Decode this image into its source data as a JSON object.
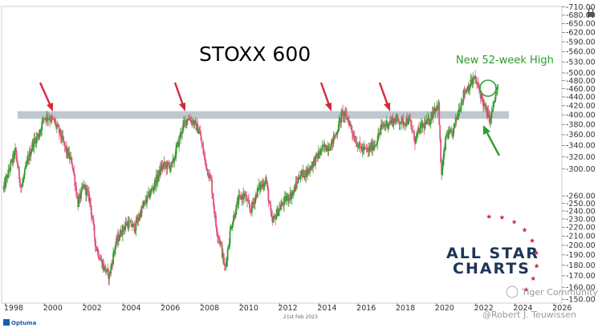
{
  "chart_data": {
    "type": "candlestick",
    "title": "STOXX 600",
    "x_ticks": [
      "1998",
      "2000",
      "2002",
      "2004",
      "2006",
      "2008",
      "2010",
      "2012",
      "2014",
      "2016",
      "2018",
      "2020",
      "2022",
      "2024",
      "2026"
    ],
    "y_ticks": [
      150,
      160,
      170,
      180,
      190,
      200,
      210,
      220,
      230,
      240,
      250,
      260,
      300,
      320,
      340,
      360,
      380,
      400,
      420,
      440,
      460,
      480,
      500,
      530,
      560,
      590,
      620,
      650,
      680,
      710
    ],
    "y_scale": "log",
    "ylim": [
      147,
      712
    ],
    "xlim": [
      1997.8,
      2026.4
    ],
    "resistance_band": [
      392,
      408
    ],
    "annotation": "New 52-week High",
    "date_stamp": "21st Feb 2023",
    "series": [
      {
        "values": [
          [
            1997.9,
            270
          ],
          [
            1998.2,
            300
          ],
          [
            1998.5,
            330
          ],
          [
            1998.8,
            270
          ],
          [
            1999.1,
            310
          ],
          [
            1999.4,
            345
          ],
          [
            1999.7,
            360
          ],
          [
            1999.95,
            395
          ],
          [
            2000.2,
            395
          ],
          [
            2000.5,
            385
          ],
          [
            2000.8,
            360
          ],
          [
            2001.1,
            330
          ],
          [
            2001.4,
            310
          ],
          [
            2001.7,
            250
          ],
          [
            2002.0,
            275
          ],
          [
            2002.3,
            255
          ],
          [
            2002.6,
            200
          ],
          [
            2002.85,
            185
          ],
          [
            2003.1,
            175
          ],
          [
            2003.3,
            170
          ],
          [
            2003.6,
            200
          ],
          [
            2003.9,
            215
          ],
          [
            2004.2,
            225
          ],
          [
            2004.6,
            220
          ],
          [
            2005.0,
            245
          ],
          [
            2005.5,
            270
          ],
          [
            2006.0,
            305
          ],
          [
            2006.5,
            305
          ],
          [
            2007.0,
            370
          ],
          [
            2007.3,
            395
          ],
          [
            2007.6,
            385
          ],
          [
            2007.9,
            365
          ],
          [
            2008.2,
            310
          ],
          [
            2008.5,
            280
          ],
          [
            2008.75,
            220
          ],
          [
            2009.0,
            200
          ],
          [
            2009.2,
            175
          ],
          [
            2009.5,
            220
          ],
          [
            2009.9,
            255
          ],
          [
            2010.2,
            262
          ],
          [
            2010.5,
            240
          ],
          [
            2010.9,
            270
          ],
          [
            2011.3,
            283
          ],
          [
            2011.6,
            225
          ],
          [
            2011.9,
            240
          ],
          [
            2012.3,
            255
          ],
          [
            2012.7,
            265
          ],
          [
            2013.0,
            290
          ],
          [
            2013.4,
            295
          ],
          [
            2013.8,
            315
          ],
          [
            2014.2,
            335
          ],
          [
            2014.6,
            340
          ],
          [
            2014.9,
            365
          ],
          [
            2015.2,
            405
          ],
          [
            2015.5,
            390
          ],
          [
            2015.8,
            355
          ],
          [
            2016.1,
            335
          ],
          [
            2016.5,
            330
          ],
          [
            2016.9,
            345
          ],
          [
            2017.2,
            375
          ],
          [
            2017.6,
            385
          ],
          [
            2017.9,
            390
          ],
          [
            2018.3,
            385
          ],
          [
            2018.6,
            390
          ],
          [
            2018.9,
            350
          ],
          [
            2019.2,
            375
          ],
          [
            2019.6,
            385
          ],
          [
            2019.9,
            415
          ],
          [
            2020.1,
            420
          ],
          [
            2020.25,
            290
          ],
          [
            2020.5,
            360
          ],
          [
            2020.8,
            360
          ],
          [
            2021.1,
            405
          ],
          [
            2021.4,
            450
          ],
          [
            2021.7,
            470
          ],
          [
            2021.95,
            485
          ],
          [
            2022.2,
            455
          ],
          [
            2022.5,
            410
          ],
          [
            2022.75,
            390
          ],
          [
            2022.95,
            430
          ],
          [
            2023.14,
            465
          ]
        ]
      }
    ]
  },
  "brand": {
    "line1": "ALL STAR",
    "line2": "CHARTS"
  },
  "credit": "@Robert J. Teuwissen",
  "watermark": "Tiger Community",
  "source_label": "Optuma",
  "colors": {
    "up": "#2f9e2f",
    "down": "#e0557a",
    "band": "#8a9aa8",
    "arrow_red": "#d42a3b",
    "arrow_green": "#2f9e2f"
  }
}
